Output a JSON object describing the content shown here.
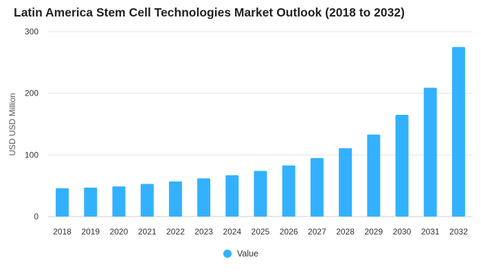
{
  "chart_data": {
    "type": "bar",
    "title": "Latin America Stem Cell Technologies Market Outlook (2018 to 2032)",
    "xlabel": "",
    "ylabel": "USD USD Million",
    "ylim": [
      0,
      300
    ],
    "yticks": [
      0,
      100,
      200,
      300
    ],
    "grid": true,
    "legend_position": "bottom",
    "categories": [
      "2018",
      "2019",
      "2020",
      "2021",
      "2022",
      "2023",
      "2024",
      "2025",
      "2026",
      "2027",
      "2028",
      "2029",
      "2030",
      "2031",
      "2032"
    ],
    "series": [
      {
        "name": "Value",
        "color": "#33b1ff",
        "values": [
          46,
          47,
          49,
          53,
          57,
          62,
          67,
          74,
          83,
          95,
          111,
          133,
          165,
          209,
          275
        ]
      }
    ]
  },
  "colors": {
    "grid": "#e6e6e6",
    "axis": "#cccccc"
  }
}
